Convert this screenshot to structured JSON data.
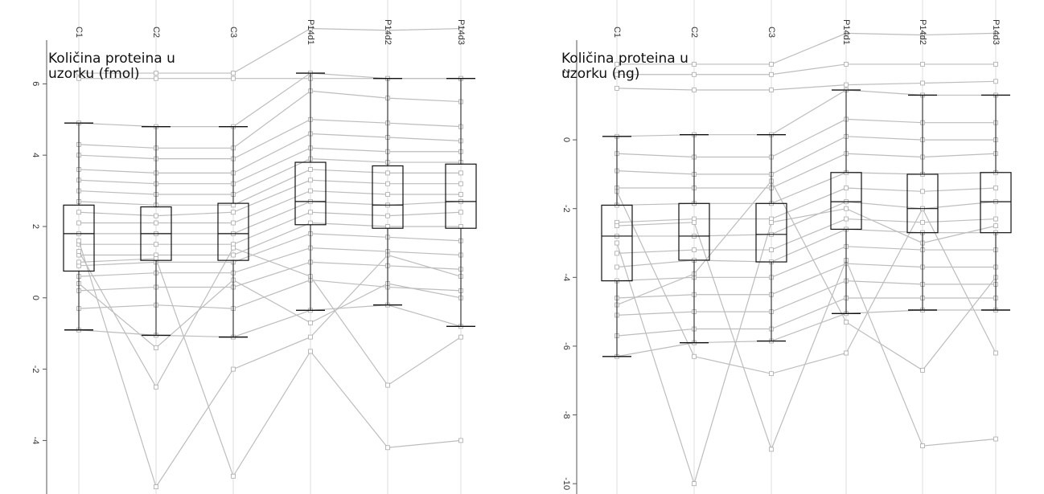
{
  "chart_data": [
    {
      "type": "box",
      "title": "",
      "ylabel": "Količina proteina u uzorku (fmol)",
      "ylabel_lines": [
        "Količina proteina u",
        "uzorku (fmol)"
      ],
      "categories": [
        "C1",
        "C2",
        "C3",
        "P14d1",
        "P14d2",
        "P14d3"
      ],
      "ylim": [
        -5.5,
        7.9
      ],
      "yticks": [
        6,
        4,
        2,
        0,
        -2,
        -4
      ],
      "ytick_labels": [
        "6",
        "4",
        "2",
        "0",
        "-2",
        "-4"
      ],
      "boxes": [
        {
          "category": "C1",
          "whisker_low": -0.9,
          "q1": 0.75,
          "median": 1.8,
          "q3": 2.6,
          "whisker_high": 4.9
        },
        {
          "category": "C2",
          "whisker_low": -1.05,
          "q1": 1.05,
          "median": 1.8,
          "q3": 2.55,
          "whisker_high": 4.8
        },
        {
          "category": "C3",
          "whisker_low": -1.1,
          "q1": 1.05,
          "median": 1.8,
          "q3": 2.65,
          "whisker_high": 4.8
        },
        {
          "category": "P14d1",
          "whisker_low": -0.35,
          "q1": 2.05,
          "median": 2.7,
          "q3": 3.8,
          "whisker_high": 6.3
        },
        {
          "category": "P14d2",
          "whisker_low": -0.2,
          "q1": 1.95,
          "median": 2.6,
          "q3": 3.7,
          "whisker_high": 6.15
        },
        {
          "category": "P14d3",
          "whisker_low": -0.8,
          "q1": 1.95,
          "median": 2.7,
          "q3": 3.75,
          "whisker_high": 6.15
        }
      ],
      "profiles": [
        [
          6.3,
          6.3,
          6.3,
          7.55,
          7.5,
          7.55
        ],
        [
          6.15,
          6.15,
          6.15,
          6.15,
          6.15,
          6.15
        ],
        [
          4.9,
          4.8,
          4.8,
          6.3,
          6.15,
          6.15
        ],
        [
          4.3,
          4.2,
          4.2,
          5.8,
          5.6,
          5.5
        ],
        [
          4.0,
          3.9,
          3.9,
          5.0,
          4.9,
          4.8
        ],
        [
          3.6,
          3.5,
          3.5,
          4.6,
          4.5,
          4.4
        ],
        [
          3.3,
          3.2,
          3.2,
          4.2,
          4.1,
          4.1
        ],
        [
          3.0,
          2.9,
          2.9,
          3.9,
          3.8,
          3.8
        ],
        [
          2.7,
          2.6,
          2.6,
          3.6,
          3.5,
          3.5
        ],
        [
          2.4,
          2.3,
          2.4,
          3.3,
          3.2,
          3.2
        ],
        [
          2.1,
          2.1,
          2.1,
          3.0,
          2.9,
          2.9
        ],
        [
          1.8,
          1.8,
          1.8,
          2.7,
          2.6,
          2.7
        ],
        [
          1.5,
          1.5,
          1.5,
          2.4,
          2.3,
          2.4
        ],
        [
          1.2,
          1.2,
          1.2,
          2.1,
          2.0,
          2.0
        ],
        [
          0.9,
          1.0,
          1.0,
          1.8,
          1.7,
          1.6
        ],
        [
          0.6,
          0.7,
          0.7,
          1.4,
          1.3,
          1.2
        ],
        [
          0.2,
          0.3,
          0.3,
          1.0,
          0.9,
          0.8
        ],
        [
          -0.3,
          -0.2,
          -0.3,
          0.5,
          0.3,
          0.2
        ],
        [
          -0.9,
          -1.05,
          -1.1,
          -0.35,
          -0.2,
          -0.8
        ],
        [
          1.3,
          -2.5,
          1.4,
          0.6,
          -2.45,
          -1.1
        ],
        [
          1.6,
          -5.3,
          -2.0,
          -1.1,
          1.2,
          0.6
        ],
        [
          1.0,
          1.1,
          -5.0,
          -1.5,
          -4.2,
          -4.0
        ],
        [
          0.4,
          -1.4,
          0.5,
          -0.7,
          0.4,
          0.0
        ]
      ]
    },
    {
      "type": "box",
      "title": "",
      "ylabel": "Količina proteina u uzorku (ng)",
      "ylabel_lines": [
        "Količina proteina u",
        "uzorku (ng)"
      ],
      "categories": [
        "C1",
        "C2",
        "C3",
        "P14d1",
        "P14d2",
        "P14d3"
      ],
      "ylim": [
        -10.3,
        3.6
      ],
      "yticks": [
        2,
        0,
        -2,
        -4,
        -6,
        -8,
        -10
      ],
      "ytick_labels": [
        "2",
        "0",
        "-2",
        "-4",
        "-6",
        "-8",
        "-10"
      ],
      "boxes": [
        {
          "category": "C1",
          "whisker_low": -6.3,
          "q1": -4.1,
          "median": -2.8,
          "q3": -1.9,
          "whisker_high": 0.1
        },
        {
          "category": "C2",
          "whisker_low": -5.9,
          "q1": -3.5,
          "median": -2.8,
          "q3": -1.85,
          "whisker_high": 0.15
        },
        {
          "category": "C3",
          "whisker_low": -5.85,
          "q1": -3.55,
          "median": -2.75,
          "q3": -1.85,
          "whisker_high": 0.15
        },
        {
          "category": "P14d1",
          "whisker_low": -5.05,
          "q1": -2.6,
          "median": -1.8,
          "q3": -0.95,
          "whisker_high": 1.45
        },
        {
          "category": "P14d2",
          "whisker_low": -4.95,
          "q1": -2.7,
          "median": -2.0,
          "q3": -1.0,
          "whisker_high": 1.3
        },
        {
          "category": "P14d3",
          "whisker_low": -4.95,
          "q1": -2.7,
          "median": -1.8,
          "q3": -0.95,
          "whisker_high": 1.3
        }
      ],
      "profiles": [
        [
          2.2,
          2.2,
          2.2,
          3.1,
          3.05,
          3.1
        ],
        [
          1.9,
          1.9,
          1.9,
          2.2,
          2.2,
          2.2
        ],
        [
          1.5,
          1.45,
          1.45,
          1.6,
          1.65,
          1.7
        ],
        [
          0.1,
          0.15,
          0.15,
          1.45,
          1.3,
          1.3
        ],
        [
          -0.4,
          -0.5,
          -0.5,
          0.6,
          0.5,
          0.5
        ],
        [
          -0.9,
          -1.0,
          -1.0,
          0.1,
          0.0,
          0.0
        ],
        [
          -1.4,
          -1.4,
          -1.4,
          -0.4,
          -0.5,
          -0.4
        ],
        [
          -1.9,
          -1.85,
          -1.85,
          -0.95,
          -1.0,
          -0.95
        ],
        [
          -2.4,
          -2.3,
          -2.3,
          -1.4,
          -1.5,
          -1.4
        ],
        [
          -2.8,
          -2.8,
          -2.75,
          -1.8,
          -2.0,
          -1.8
        ],
        [
          -3.3,
          -3.2,
          -3.2,
          -2.3,
          -2.4,
          -2.3
        ],
        [
          -3.7,
          -3.5,
          -3.55,
          -2.6,
          -2.7,
          -2.7
        ],
        [
          -4.1,
          -4.0,
          -4.0,
          -3.1,
          -3.2,
          -3.2
        ],
        [
          -4.6,
          -4.5,
          -4.5,
          -3.6,
          -3.7,
          -3.7
        ],
        [
          -5.1,
          -5.0,
          -5.0,
          -4.1,
          -4.2,
          -4.2
        ],
        [
          -5.7,
          -5.5,
          -5.5,
          -4.6,
          -4.6,
          -4.6
        ],
        [
          -6.3,
          -5.9,
          -5.85,
          -5.05,
          -4.95,
          -4.95
        ],
        [
          -3.0,
          -10.0,
          -2.4,
          -2.0,
          -3.0,
          -2.5
        ],
        [
          -2.5,
          -2.4,
          -9.0,
          -3.5,
          -8.9,
          -8.7
        ],
        [
          -1.5,
          -6.3,
          -6.8,
          -6.2,
          -2.0,
          -6.2
        ],
        [
          -4.8,
          -3.9,
          -1.2,
          -5.3,
          -6.7,
          -4.0
        ]
      ]
    }
  ]
}
